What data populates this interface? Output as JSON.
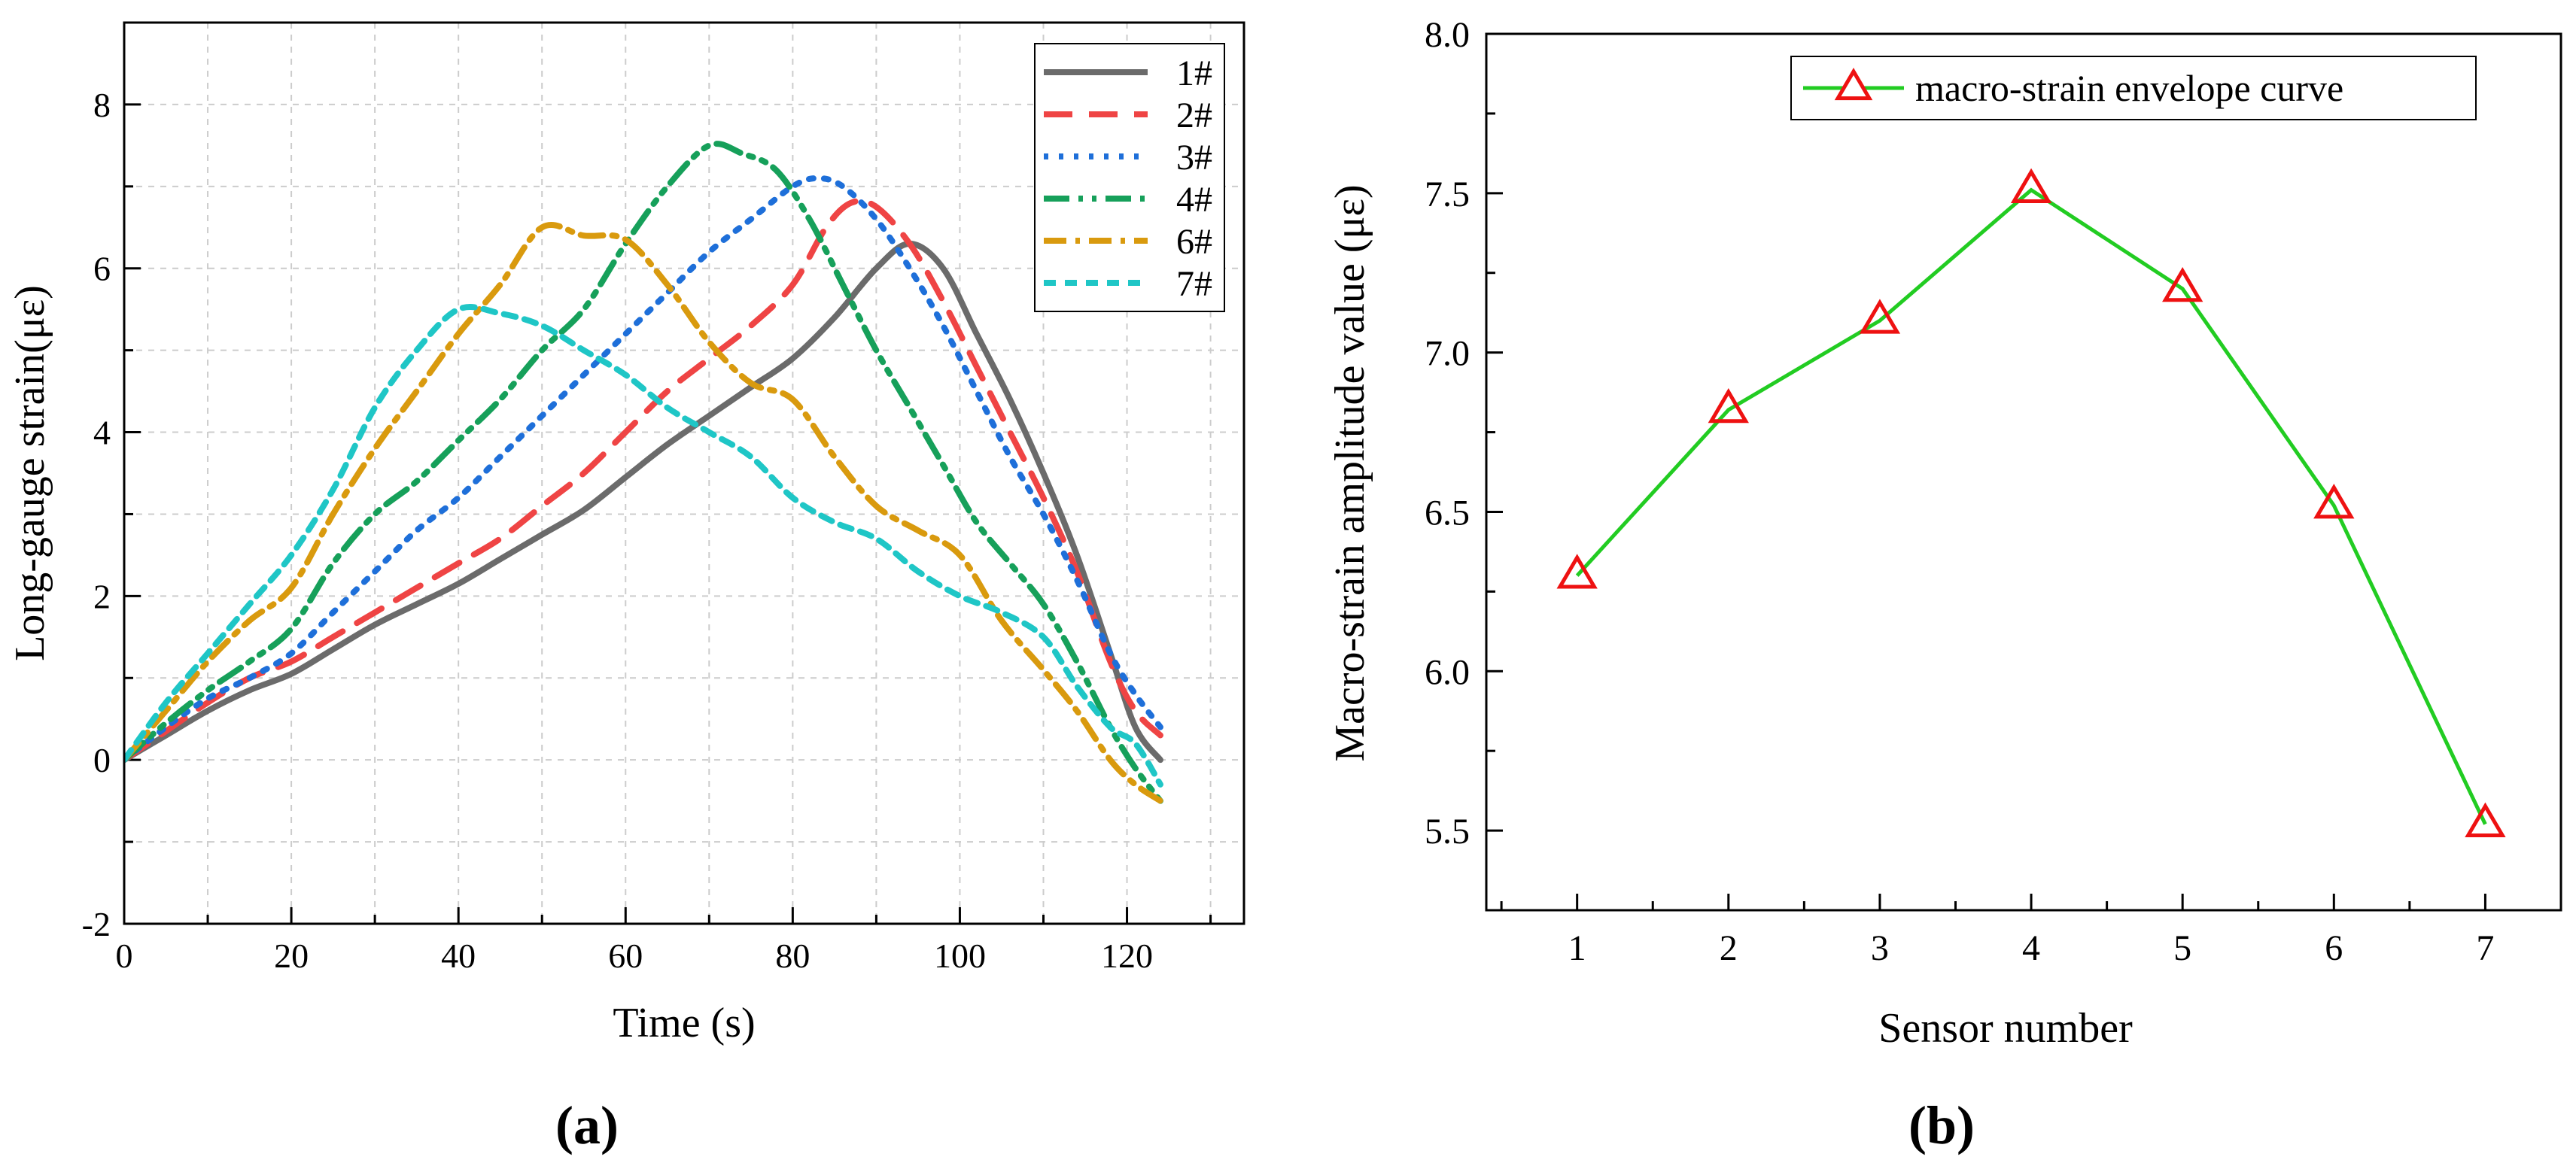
{
  "chart_data": [
    {
      "type": "line",
      "panel_label": "(a)",
      "title": "",
      "xlabel": "Time (s)",
      "ylabel": "Long-gauge strain(με)",
      "xlim": [
        0,
        134
      ],
      "ylim": [
        -2,
        9
      ],
      "xticks": [
        "0",
        "20",
        "40",
        "60",
        "80",
        "100",
        "120"
      ],
      "yticks": [
        "-2",
        "0",
        "2",
        "4",
        "6",
        "8"
      ],
      "grid": true,
      "legend_position": "top-right",
      "series": [
        {
          "name": "1#",
          "color": "#6b6b6b",
          "dash": "solid",
          "x": [
            0,
            5,
            10,
            15,
            20,
            25,
            30,
            35,
            40,
            45,
            50,
            55,
            60,
            65,
            70,
            75,
            80,
            85,
            90,
            94,
            98,
            102,
            106,
            110,
            114,
            118,
            121,
            124
          ],
          "y": [
            0,
            0.3,
            0.6,
            0.85,
            1.05,
            1.35,
            1.65,
            1.9,
            2.15,
            2.45,
            2.75,
            3.05,
            3.45,
            3.85,
            4.2,
            4.55,
            4.9,
            5.4,
            6.0,
            6.3,
            6.0,
            5.2,
            4.4,
            3.5,
            2.5,
            1.3,
            0.4,
            0.0
          ]
        },
        {
          "name": "2#",
          "color": "#ef4444",
          "dash": "long",
          "x": [
            0,
            5,
            10,
            15,
            20,
            25,
            30,
            35,
            40,
            45,
            50,
            55,
            60,
            65,
            70,
            75,
            80,
            84,
            87,
            90,
            94,
            98,
            102,
            106,
            110,
            114,
            118,
            121,
            124
          ],
          "y": [
            0,
            0.35,
            0.7,
            1.0,
            1.2,
            1.5,
            1.8,
            2.1,
            2.4,
            2.7,
            3.1,
            3.5,
            4.0,
            4.5,
            4.9,
            5.3,
            5.8,
            6.5,
            6.8,
            6.75,
            6.3,
            5.6,
            4.8,
            4.0,
            3.2,
            2.3,
            1.2,
            0.6,
            0.3
          ]
        },
        {
          "name": "3#",
          "color": "#1e6fd9",
          "dash": "dot",
          "x": [
            0,
            5,
            10,
            15,
            20,
            25,
            30,
            35,
            40,
            45,
            50,
            55,
            60,
            65,
            70,
            75,
            80,
            83,
            86,
            90,
            94,
            98,
            102,
            106,
            110,
            114,
            118,
            121,
            124
          ],
          "y": [
            0,
            0.4,
            0.75,
            1.0,
            1.3,
            1.8,
            2.3,
            2.8,
            3.2,
            3.7,
            4.2,
            4.7,
            5.2,
            5.7,
            6.2,
            6.6,
            7.0,
            7.1,
            7.0,
            6.6,
            6.0,
            5.3,
            4.5,
            3.7,
            3.0,
            2.2,
            1.3,
            0.8,
            0.4
          ]
        },
        {
          "name": "4#",
          "color": "#16a05a",
          "dash": "dashdotdot",
          "x": [
            0,
            5,
            10,
            15,
            20,
            25,
            30,
            35,
            40,
            45,
            50,
            55,
            60,
            65,
            70,
            74,
            78,
            82,
            86,
            90,
            94,
            98,
            102,
            106,
            110,
            114,
            118,
            121,
            124
          ],
          "y": [
            0,
            0.45,
            0.85,
            1.2,
            1.6,
            2.4,
            3.0,
            3.4,
            3.9,
            4.4,
            5.0,
            5.5,
            6.3,
            7.0,
            7.5,
            7.4,
            7.2,
            6.6,
            5.8,
            5.0,
            4.3,
            3.6,
            2.9,
            2.4,
            1.9,
            1.2,
            0.4,
            -0.1,
            -0.5
          ]
        },
        {
          "name": "6#",
          "color": "#d99a0e",
          "dash": "dashdot",
          "x": [
            0,
            5,
            10,
            15,
            20,
            25,
            30,
            35,
            40,
            45,
            50,
            55,
            60,
            65,
            70,
            75,
            80,
            85,
            90,
            95,
            100,
            105,
            110,
            114,
            118,
            121,
            124
          ],
          "y": [
            0,
            0.6,
            1.2,
            1.7,
            2.1,
            3.0,
            3.8,
            4.5,
            5.2,
            5.8,
            6.5,
            6.4,
            6.35,
            5.8,
            5.1,
            4.6,
            4.4,
            3.7,
            3.1,
            2.8,
            2.5,
            1.7,
            1.1,
            0.6,
            0.0,
            -0.3,
            -0.5
          ]
        },
        {
          "name": "7#",
          "color": "#1fc6c6",
          "dash": "shortdash",
          "x": [
            0,
            5,
            10,
            15,
            20,
            25,
            30,
            35,
            40,
            45,
            50,
            55,
            60,
            65,
            70,
            75,
            80,
            85,
            90,
            95,
            100,
            105,
            110,
            114,
            118,
            121,
            124
          ],
          "y": [
            0,
            0.7,
            1.3,
            1.9,
            2.5,
            3.3,
            4.3,
            5.0,
            5.5,
            5.45,
            5.3,
            5.0,
            4.7,
            4.3,
            4.0,
            3.7,
            3.2,
            2.9,
            2.7,
            2.3,
            2.0,
            1.8,
            1.5,
            0.9,
            0.4,
            0.2,
            -0.3
          ]
        }
      ]
    },
    {
      "type": "line",
      "panel_label": "(b)",
      "title": "",
      "xlabel": "Sensor number",
      "ylabel": "Macro-strain amplitude value (με)",
      "xlim": [
        0.4,
        7.5
      ],
      "ylim": [
        5.25,
        8.0
      ],
      "xticks": [
        "1",
        "2",
        "3",
        "4",
        "5",
        "6",
        "7"
      ],
      "yticks": [
        "5.5",
        "6.0",
        "6.5",
        "7.0",
        "7.5",
        "8.0"
      ],
      "grid": false,
      "legend_position": "top-right",
      "series": [
        {
          "name": "macro-strain envelope curve",
          "color": "#22cc22",
          "marker": "triangle",
          "marker_color": "#ee1111",
          "x": [
            1,
            2,
            3,
            4,
            5,
            6,
            7
          ],
          "y": [
            6.3,
            6.82,
            7.1,
            7.51,
            7.2,
            6.52,
            5.52
          ]
        }
      ]
    }
  ]
}
